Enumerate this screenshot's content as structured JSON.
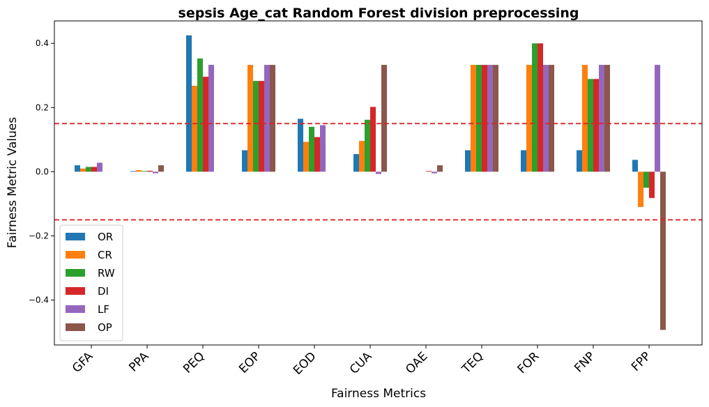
{
  "chart_data": {
    "type": "bar",
    "title": "sepsis Age_cat Random Forest division preprocessing",
    "xlabel": "Fairness Metrics",
    "ylabel": "Fairness Metric Values",
    "categories": [
      "GFA",
      "PPA",
      "PEQ",
      "EOP",
      "EOD",
      "CUA",
      "OAE",
      "TEQ",
      "FOR",
      "FNP",
      "FPP"
    ],
    "ylim": [
      -0.54,
      0.47
    ],
    "yticks": [
      -0.4,
      -0.2,
      0.0,
      0.2,
      0.4
    ],
    "ytick_labels": [
      "−0.4",
      "−0.2",
      "0.0",
      "0.2",
      "0.4"
    ],
    "threshold_lines": [
      0.15,
      -0.15
    ],
    "threshold_color": "#d62728",
    "legend_position": "lower-left",
    "grid": false,
    "series": [
      {
        "name": "OR",
        "color": "#1f77b4",
        "values": [
          0.02,
          0.002,
          0.425,
          0.067,
          0.165,
          0.055,
          0.0,
          0.067,
          0.067,
          0.067,
          0.037
        ]
      },
      {
        "name": "CR",
        "color": "#ff7f0e",
        "values": [
          0.01,
          0.005,
          0.268,
          0.333,
          0.093,
          0.096,
          0.0,
          0.333,
          0.333,
          0.333,
          -0.11
        ]
      },
      {
        "name": "RW",
        "color": "#2ca02c",
        "values": [
          0.015,
          0.002,
          0.353,
          0.283,
          0.14,
          0.162,
          0.0,
          0.333,
          0.4,
          0.289,
          -0.05
        ]
      },
      {
        "name": "DI",
        "color": "#d62728",
        "values": [
          0.015,
          0.003,
          0.296,
          0.283,
          0.108,
          0.202,
          0.002,
          0.333,
          0.4,
          0.289,
          -0.082
        ]
      },
      {
        "name": "LF",
        "color": "#9467bd",
        "values": [
          0.028,
          -0.005,
          0.333,
          0.333,
          0.145,
          -0.007,
          -0.005,
          0.333,
          0.333,
          0.333,
          0.333
        ]
      },
      {
        "name": "OP",
        "color": "#8c564b",
        "values": [
          0.0,
          0.02,
          0.0,
          0.333,
          0.0,
          0.333,
          0.02,
          0.333,
          0.333,
          0.333,
          -0.493
        ]
      }
    ]
  }
}
